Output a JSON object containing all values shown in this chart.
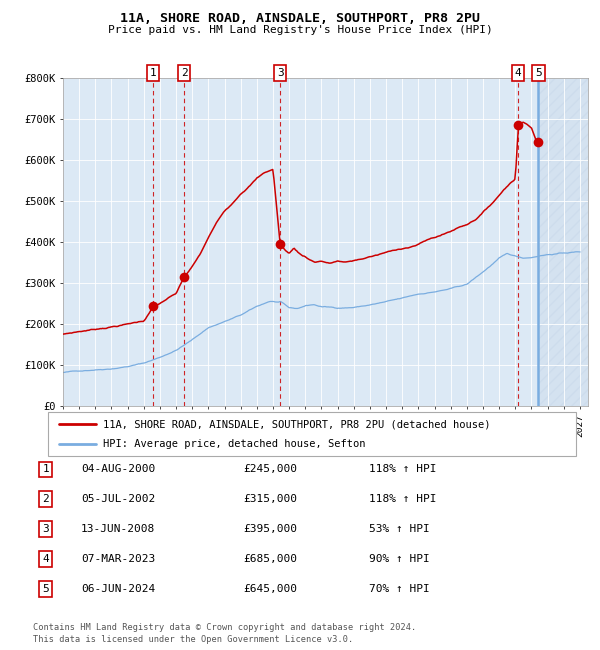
{
  "title": "11A, SHORE ROAD, AINSDALE, SOUTHPORT, PR8 2PU",
  "subtitle": "Price paid vs. HM Land Registry's House Price Index (HPI)",
  "background_color": "#dce9f5",
  "plot_bg_color": "#dce9f5",
  "red_line_color": "#cc0000",
  "blue_line_color": "#7aade0",
  "sale_points": [
    {
      "label": "1",
      "date_num": 2000.59,
      "price": 245000,
      "vline_style": "dashed"
    },
    {
      "label": "2",
      "date_num": 2002.51,
      "price": 315000,
      "vline_style": "dashed"
    },
    {
      "label": "3",
      "date_num": 2008.45,
      "price": 395000,
      "vline_style": "dashed"
    },
    {
      "label": "4",
      "date_num": 2023.18,
      "price": 685000,
      "vline_style": "dashed"
    },
    {
      "label": "5",
      "date_num": 2024.43,
      "price": 645000,
      "vline_style": "solid_blue"
    }
  ],
  "table_rows": [
    {
      "num": "1",
      "date": "04-AUG-2000",
      "price": "£245,000",
      "hpi": "118% ↑ HPI"
    },
    {
      "num": "2",
      "date": "05-JUL-2002",
      "price": "£315,000",
      "hpi": "118% ↑ HPI"
    },
    {
      "num": "3",
      "date": "13-JUN-2008",
      "price": "£395,000",
      "hpi": "53% ↑ HPI"
    },
    {
      "num": "4",
      "date": "07-MAR-2023",
      "price": "£685,000",
      "hpi": "90% ↑ HPI"
    },
    {
      "num": "5",
      "date": "06-JUN-2024",
      "price": "£645,000",
      "hpi": "70% ↑ HPI"
    }
  ],
  "legend_line1": "11A, SHORE ROAD, AINSDALE, SOUTHPORT, PR8 2PU (detached house)",
  "legend_line2": "HPI: Average price, detached house, Sefton",
  "footer1": "Contains HM Land Registry data © Crown copyright and database right 2024.",
  "footer2": "This data is licensed under the Open Government Licence v3.0.",
  "ylim": [
    0,
    800000
  ],
  "xlim_start": 1995.0,
  "xlim_end": 2027.5,
  "yticks": [
    0,
    100000,
    200000,
    300000,
    400000,
    500000,
    600000,
    700000,
    800000
  ],
  "ytick_labels": [
    "£0",
    "£100K",
    "£200K",
    "£300K",
    "£400K",
    "£500K",
    "£600K",
    "£700K",
    "£800K"
  ]
}
